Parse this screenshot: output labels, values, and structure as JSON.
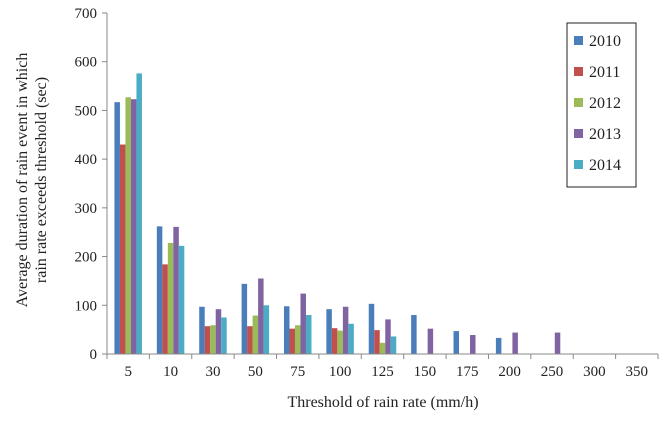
{
  "chart_data": {
    "type": "bar",
    "title": "",
    "xlabel": "Threshold of rain rate (mm/h)",
    "ylabel_lines": [
      "Average duration of rain event in which",
      "rain rate exceeds threshold  (sec)"
    ],
    "ylim": [
      0,
      700
    ],
    "yticks": [
      0,
      100,
      200,
      300,
      400,
      500,
      600,
      700
    ],
    "grid": false,
    "legend_position": "top-right",
    "categories": [
      "5",
      "10",
      "30",
      "50",
      "75",
      "100",
      "125",
      "150",
      "175",
      "200",
      "250",
      "300",
      "350"
    ],
    "series": [
      {
        "name": "2010",
        "color": "#4a7ebb",
        "values": [
          517,
          262,
          97,
          144,
          98,
          92,
          103,
          80,
          47,
          33,
          0,
          0,
          0
        ]
      },
      {
        "name": "2011",
        "color": "#c0504d",
        "values": [
          430,
          184,
          57,
          57,
          52,
          53,
          49,
          0,
          0,
          0,
          0,
          0,
          0
        ]
      },
      {
        "name": "2012",
        "color": "#9bbb59",
        "values": [
          527,
          228,
          59,
          79,
          59,
          48,
          23,
          0,
          0,
          0,
          0,
          0,
          0
        ]
      },
      {
        "name": "2013",
        "color": "#8064a2",
        "values": [
          523,
          261,
          92,
          155,
          124,
          97,
          71,
          52,
          39,
          44,
          44,
          0,
          0
        ]
      },
      {
        "name": "2014",
        "color": "#4bacc6",
        "values": [
          576,
          222,
          75,
          100,
          80,
          62,
          36,
          0,
          0,
          0,
          0,
          0,
          0
        ]
      }
    ]
  }
}
